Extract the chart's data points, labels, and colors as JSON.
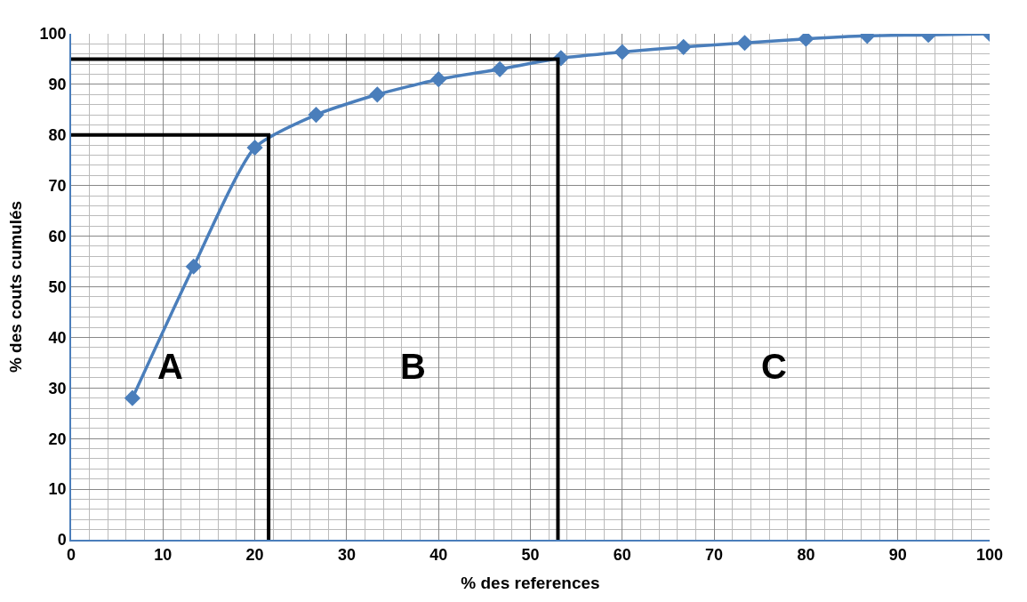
{
  "chart_data": {
    "type": "line",
    "xlabel": "% des references",
    "ylabel": "% des couts cumulés",
    "xlim": [
      0,
      100
    ],
    "ylim": [
      0,
      100
    ],
    "xticks": [
      0,
      10,
      20,
      30,
      40,
      50,
      60,
      70,
      80,
      90,
      100
    ],
    "yticks": [
      0,
      10,
      20,
      30,
      40,
      50,
      60,
      70,
      80,
      90,
      100
    ],
    "grid": true,
    "marker": "diamond",
    "line_style": "solid",
    "series": [
      {
        "color": "#4a7ebb",
        "x": [
          6.67,
          13.33,
          20,
          26.67,
          33.33,
          40,
          46.67,
          53.33,
          60,
          66.67,
          73.33,
          80,
          86.67,
          93.33,
          100
        ],
        "values": [
          28,
          54,
          77.5,
          84,
          88,
          91,
          93,
          95.2,
          96.4,
          97.4,
          98.2,
          99,
          99.6,
          99.8,
          100
        ]
      },
      {
        "color": "#000000",
        "marker": "none",
        "x": [
          0,
          21.5,
          21.5
        ],
        "values": [
          80,
          80,
          0
        ]
      },
      {
        "color": "#000000",
        "marker": "none",
        "x": [
          0,
          53,
          53
        ],
        "values": [
          95,
          95,
          0
        ]
      }
    ],
    "annotations": [
      "A",
      "B",
      "C"
    ]
  }
}
